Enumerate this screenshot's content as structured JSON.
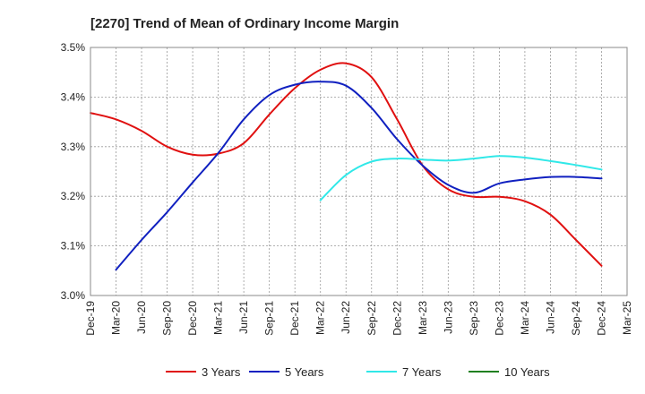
{
  "chart_data": {
    "type": "line",
    "title": "[2270]  Trend of Mean of Ordinary Income Margin",
    "xlabel": "",
    "ylabel": "",
    "x_ticks": [
      "Dec-19",
      "Mar-20",
      "Jun-20",
      "Sep-20",
      "Dec-20",
      "Mar-21",
      "Jun-21",
      "Sep-21",
      "Dec-21",
      "Mar-22",
      "Jun-22",
      "Sep-22",
      "Dec-22",
      "Mar-23",
      "Jun-23",
      "Sep-23",
      "Dec-23",
      "Mar-24",
      "Jun-24",
      "Sep-24",
      "Dec-24",
      "Mar-25"
    ],
    "y_ticks": [
      "3.0%",
      "3.1%",
      "3.2%",
      "3.3%",
      "3.4%",
      "3.5%"
    ],
    "ylim": [
      3.0,
      3.5
    ],
    "y_unit": "%",
    "grid": true,
    "legend_position": "bottom",
    "series": [
      {
        "name": "3 Years",
        "color": "#e01010",
        "points": [
          [
            "Dec-19",
            3.368
          ],
          [
            "Mar-20",
            3.355
          ],
          [
            "Jun-20",
            3.332
          ],
          [
            "Sep-20",
            3.3
          ],
          [
            "Dec-20",
            3.284
          ],
          [
            "Mar-21",
            3.286
          ],
          [
            "Jun-21",
            3.307
          ],
          [
            "Sep-21",
            3.365
          ],
          [
            "Dec-21",
            3.418
          ],
          [
            "Mar-22",
            3.455
          ],
          [
            "Jun-22",
            3.468
          ],
          [
            "Sep-22",
            3.44
          ],
          [
            "Dec-22",
            3.355
          ],
          [
            "Mar-23",
            3.262
          ],
          [
            "Jun-23",
            3.214
          ],
          [
            "Sep-23",
            3.199
          ],
          [
            "Dec-23",
            3.199
          ],
          [
            "Mar-24",
            3.19
          ],
          [
            "Jun-24",
            3.163
          ],
          [
            "Sep-24",
            3.112
          ],
          [
            "Dec-24",
            3.06
          ]
        ]
      },
      {
        "name": "5 Years",
        "color": "#1020c0",
        "points": [
          [
            "Mar-20",
            3.052
          ],
          [
            "Jun-20",
            3.112
          ],
          [
            "Sep-20",
            3.168
          ],
          [
            "Dec-20",
            3.228
          ],
          [
            "Mar-21",
            3.287
          ],
          [
            "Jun-21",
            3.355
          ],
          [
            "Sep-21",
            3.404
          ],
          [
            "Dec-21",
            3.425
          ],
          [
            "Mar-22",
            3.431
          ],
          [
            "Jun-22",
            3.423
          ],
          [
            "Sep-22",
            3.378
          ],
          [
            "Dec-22",
            3.315
          ],
          [
            "Mar-23",
            3.262
          ],
          [
            "Jun-23",
            3.223
          ],
          [
            "Sep-23",
            3.207
          ],
          [
            "Dec-23",
            3.226
          ],
          [
            "Mar-24",
            3.234
          ],
          [
            "Jun-24",
            3.239
          ],
          [
            "Sep-24",
            3.239
          ],
          [
            "Dec-24",
            3.236
          ]
        ]
      },
      {
        "name": "7 Years",
        "color": "#30e8e8",
        "points": [
          [
            "Mar-22",
            3.192
          ],
          [
            "Jun-22",
            3.243
          ],
          [
            "Sep-22",
            3.27
          ],
          [
            "Dec-22",
            3.276
          ],
          [
            "Mar-23",
            3.274
          ],
          [
            "Jun-23",
            3.272
          ],
          [
            "Sep-23",
            3.276
          ],
          [
            "Dec-23",
            3.281
          ],
          [
            "Mar-24",
            3.278
          ],
          [
            "Jun-24",
            3.271
          ],
          [
            "Sep-24",
            3.263
          ],
          [
            "Dec-24",
            3.254
          ]
        ]
      },
      {
        "name": "10 Years",
        "color": "#208020",
        "points": []
      }
    ]
  }
}
